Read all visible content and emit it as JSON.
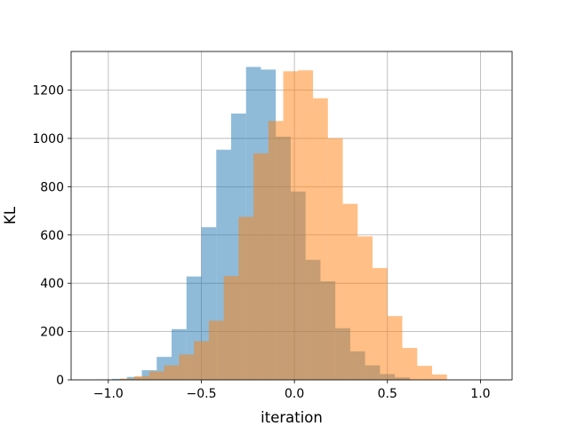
{
  "chart_data": {
    "type": "histogram",
    "title": "",
    "xlabel": "iteration",
    "ylabel": "KL",
    "xlim": [
      -1.2,
      1.17
    ],
    "ylim": [
      0,
      1360
    ],
    "xticks": [
      -1.0,
      -0.5,
      0.0,
      0.5,
      1.0
    ],
    "xtick_labels": [
      "−1.0",
      "−0.5",
      "0.0",
      "0.5",
      "1.0"
    ],
    "yticks": [
      0,
      200,
      400,
      600,
      800,
      1000,
      1200
    ],
    "ytick_labels": [
      "0",
      "200",
      "400",
      "600",
      "800",
      "1000",
      "1200"
    ],
    "grid": true,
    "legend": false,
    "series": [
      {
        "color": "#1f77b4",
        "alpha": 0.5,
        "bin_edges": [
          -1.06,
          -0.98,
          -0.9,
          -0.82,
          -0.74,
          -0.66,
          -0.58,
          -0.5,
          -0.42,
          -0.34,
          -0.26,
          -0.18,
          -0.1,
          -0.02,
          0.06,
          0.14,
          0.22,
          0.3,
          0.38,
          0.46,
          0.54,
          0.62
        ],
        "counts": [
          2,
          4,
          12,
          40,
          95,
          210,
          428,
          632,
          953,
          1103,
          1296,
          1285,
          1007,
          780,
          497,
          408,
          214,
          118,
          60,
          24,
          10
        ]
      },
      {
        "color": "#ff7f0e",
        "alpha": 0.5,
        "bin_edges": [
          -0.94,
          -0.86,
          -0.78,
          -0.7,
          -0.62,
          -0.54,
          -0.46,
          -0.38,
          -0.3,
          -0.22,
          -0.14,
          -0.06,
          0.02,
          0.1,
          0.18,
          0.26,
          0.34,
          0.42,
          0.5,
          0.58,
          0.66,
          0.74,
          0.82
        ],
        "counts": [
          5,
          15,
          35,
          60,
          105,
          160,
          245,
          430,
          675,
          938,
          1072,
          1278,
          1282,
          1166,
          1000,
          729,
          594,
          463,
          264,
          132,
          58,
          22,
          8
        ]
      }
    ]
  }
}
